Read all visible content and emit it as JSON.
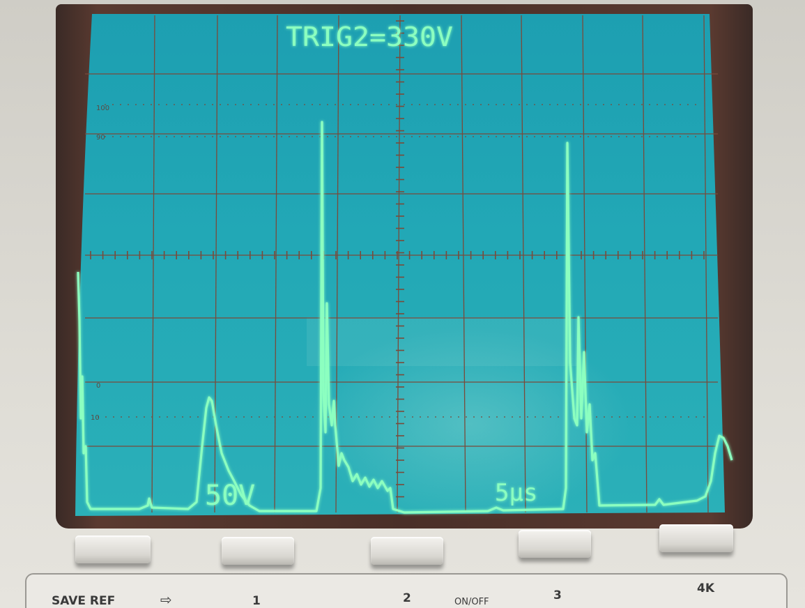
{
  "screen": {
    "trigger_text": "TRIG2=330V",
    "volts_per_div": "50V",
    "time_per_div": "5µs",
    "scale_marks": {
      "upper_a": "100",
      "upper_b": "90",
      "lower_a": "0",
      "lower_b": "10"
    },
    "phosphor_color": "#8cffc0",
    "screen_color": "#1fa3b3",
    "grid_color": "#7a4a3a"
  },
  "front_panel": {
    "labels": {
      "save_ref": "SAVE REF",
      "k1": "1",
      "k2": "2",
      "on_off": "ON/OFF",
      "k3": "3",
      "k4": "4K"
    }
  }
}
